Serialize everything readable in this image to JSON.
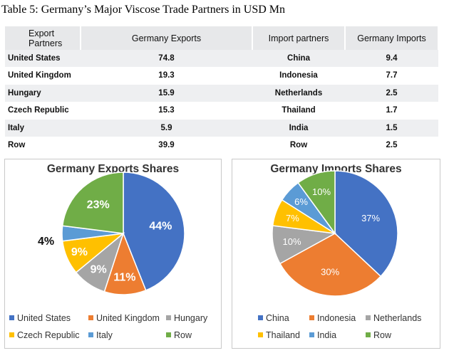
{
  "title": "Table 5: Germany’s Major Viscose Trade Partners in USD Mn",
  "table": {
    "headers": [
      "Export Partners",
      "Germany Exports",
      "Import partners",
      "Germany Imports"
    ],
    "rows": [
      [
        "United States",
        "74.8",
        "China",
        "9.4"
      ],
      [
        "United Kingdom",
        "19.3",
        "Indonesia",
        "7.7"
      ],
      [
        "Hungary",
        "15.9",
        "Netherlands",
        "2.5"
      ],
      [
        "Czech Republic",
        "15.3",
        "Thailand",
        "1.7"
      ],
      [
        "Italy",
        "5.9",
        "India",
        "1.5"
      ],
      [
        "Row",
        "39.9",
        "Row",
        "2.5"
      ]
    ]
  },
  "chart_data": [
    {
      "type": "pie",
      "title": "Germany Exports Shares",
      "categories": [
        "United States",
        "United Kingdom",
        "Hungary",
        "Czech Republic",
        "Italy",
        "Row"
      ],
      "values": [
        44,
        11,
        9,
        9,
        4,
        23
      ],
      "labels": [
        "44%",
        "11%",
        "9%",
        "9%",
        "4%",
        "23%"
      ],
      "colors": [
        "#4472c4",
        "#ed7d31",
        "#a5a5a5",
        "#ffc000",
        "#5b9bd5",
        "#70ad47"
      ],
      "legend_position": "bottom"
    },
    {
      "type": "pie",
      "title": "Germany Imports Shares",
      "categories": [
        "China",
        "Indonesia",
        "Netherlands",
        "Thailand",
        "India",
        "Row"
      ],
      "values": [
        37,
        30,
        10,
        7,
        6,
        10
      ],
      "labels": [
        "37%",
        "30%",
        "10%",
        "7%",
        "6%",
        "10%"
      ],
      "colors": [
        "#4472c4",
        "#ed7d31",
        "#a5a5a5",
        "#ffc000",
        "#5b9bd5",
        "#70ad47"
      ],
      "legend_position": "bottom"
    }
  ]
}
